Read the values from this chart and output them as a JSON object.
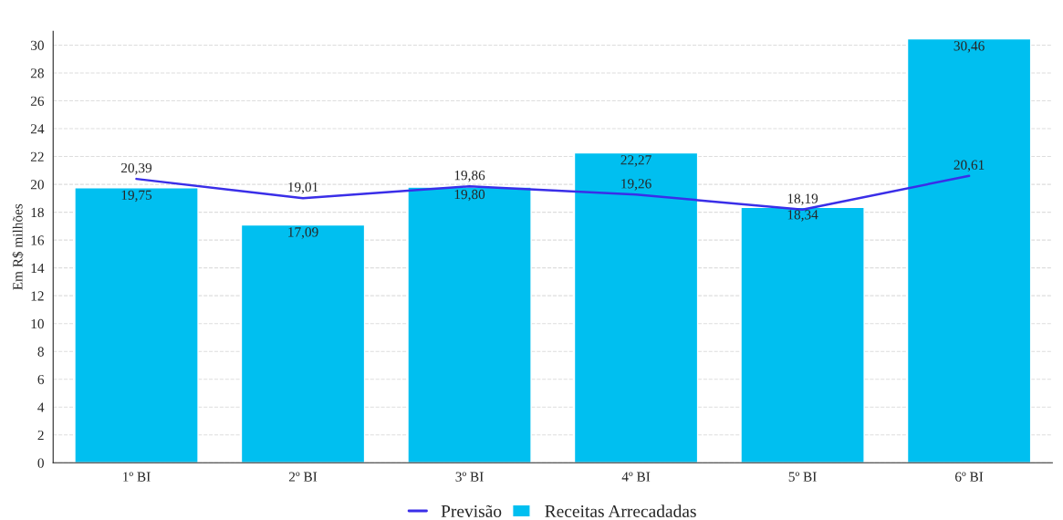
{
  "chart_data": {
    "type": "bar",
    "ylabel": "Em R$ milhões",
    "categories": [
      "1º BI",
      "2º BI",
      "3º BI",
      "4º BI",
      "5º BI",
      "6º BI"
    ],
    "series": [
      {
        "name": "Previsão",
        "type": "line",
        "color": "#3a2ee8",
        "values": [
          20.39,
          19.01,
          19.86,
          19.26,
          18.19,
          20.61
        ],
        "value_labels": [
          "20,39",
          "19,01",
          "19,86",
          "19,26",
          "18,19",
          "20,61"
        ]
      },
      {
        "name": "Receitas Arrecadadas",
        "color": "#00bff0",
        "values": [
          19.75,
          17.09,
          19.8,
          22.27,
          18.34,
          30.46
        ],
        "value_labels": [
          "19,75",
          "17,09",
          "19,80",
          "22,27",
          "18,34",
          "30,46"
        ]
      }
    ],
    "ylim": [
      0,
      31
    ],
    "yticks": [
      0,
      2,
      4,
      6,
      8,
      10,
      12,
      14,
      16,
      18,
      20,
      22,
      24,
      26,
      28,
      30
    ],
    "grid": "y",
    "legend": "bottom"
  }
}
